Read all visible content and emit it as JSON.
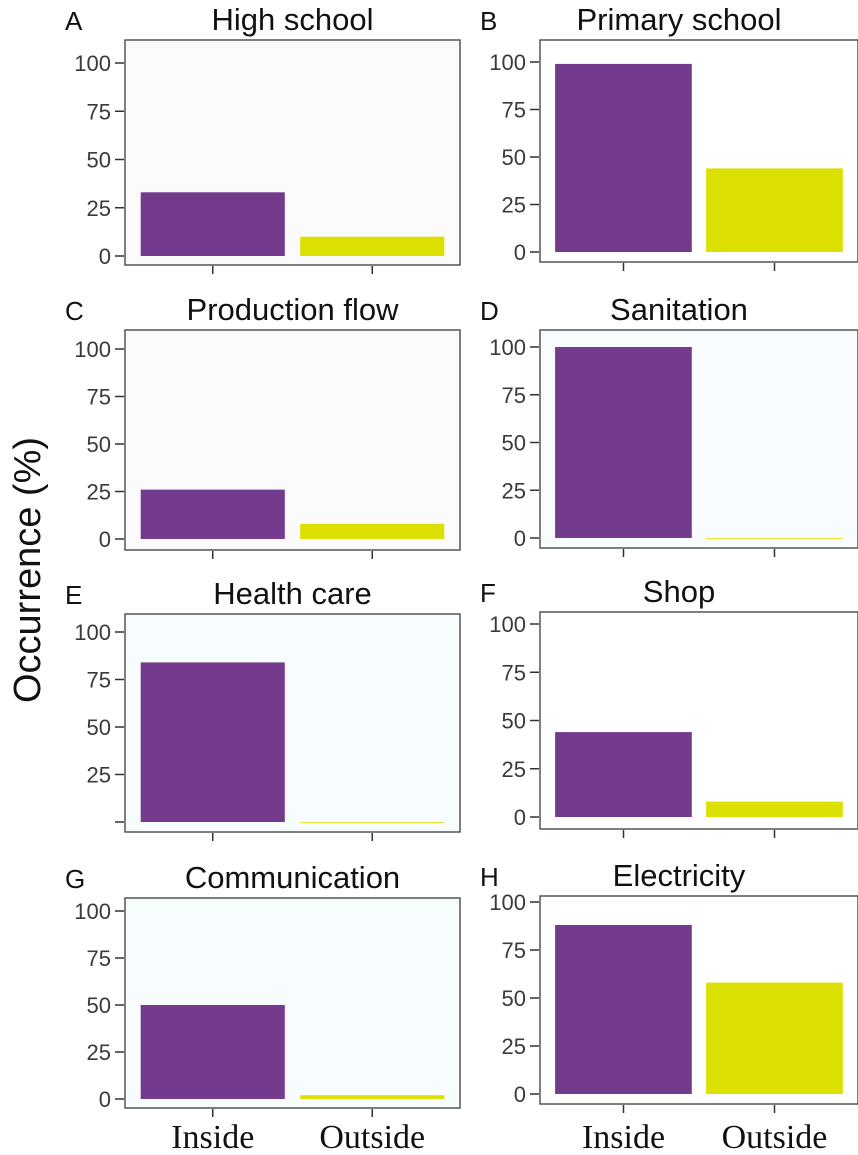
{
  "chart_data": {
    "type": "bar",
    "ylabel": "Occurrence (%)",
    "categories": [
      "Inside",
      "Outside"
    ],
    "colors": {
      "inside": "#733A8D",
      "outside": "#DCE000"
    },
    "ylim": [
      0,
      100
    ],
    "yticks": [
      "0",
      "25",
      "50",
      "75",
      "100"
    ],
    "grid": false,
    "panels": [
      {
        "letter": "A",
        "title": "High school",
        "values": [
          33,
          10
        ],
        "yticks": [
          "0",
          "25",
          "50",
          "75",
          "100"
        ]
      },
      {
        "letter": "B",
        "title": "Primary school",
        "values": [
          99,
          44
        ],
        "yticks": [
          "0",
          "25",
          "50",
          "75",
          "100"
        ]
      },
      {
        "letter": "C",
        "title": "Production flow",
        "values": [
          26,
          8
        ],
        "yticks": [
          "0",
          "25",
          "50",
          "75",
          "100"
        ]
      },
      {
        "letter": "D",
        "title": "Sanitation",
        "values": [
          100,
          0
        ],
        "yticks": [
          "0",
          "25",
          "50",
          "75",
          "100"
        ]
      },
      {
        "letter": "E",
        "title": "Health care",
        "values": [
          84,
          0
        ],
        "yticks": [
          "",
          "25",
          "50",
          "75",
          "100"
        ]
      },
      {
        "letter": "F",
        "title": "Shop",
        "values": [
          44,
          8
        ],
        "yticks": [
          "0",
          "25",
          "50",
          "75",
          "100"
        ]
      },
      {
        "letter": "G",
        "title": "Communication",
        "values": [
          50,
          2
        ],
        "yticks": [
          "0",
          "25",
          "50",
          "75",
          "100"
        ]
      },
      {
        "letter": "H",
        "title": "Electricity",
        "values": [
          88,
          58
        ],
        "yticks": [
          "0",
          "25",
          "50",
          "75",
          "100"
        ]
      }
    ]
  }
}
